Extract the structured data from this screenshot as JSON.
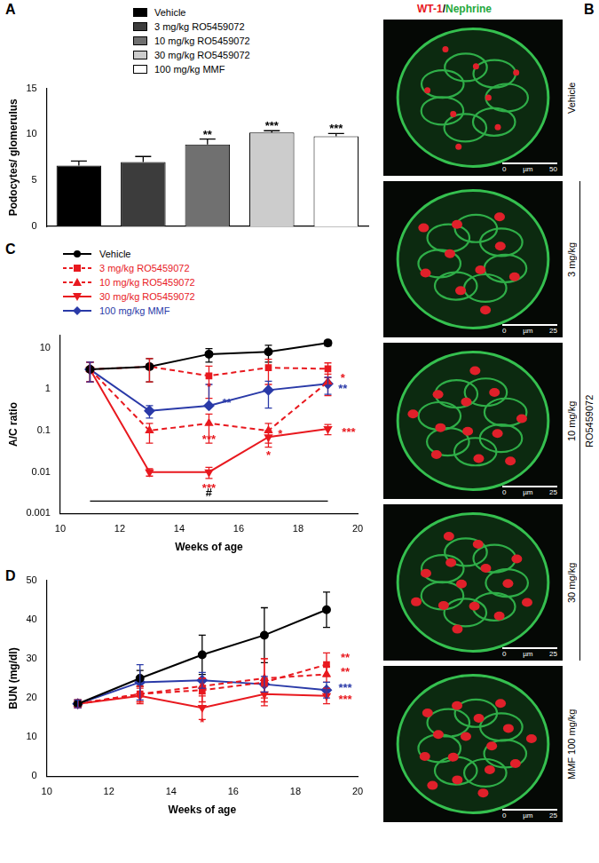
{
  "chart_data": [
    {
      "panel": "A",
      "type": "bar",
      "y_label": "Podocytes/ glomerulus",
      "categories": [
        "Vehicle",
        "3 mg/kg RO5459072",
        "10 mg/kg RO5459072",
        "30 mg/kg RO5459072",
        "100 mg/kg MMF"
      ],
      "values": [
        6.6,
        7.0,
        8.9,
        10.2,
        9.8
      ],
      "error": [
        0.5,
        0.6,
        0.6,
        0.2,
        0.3
      ],
      "colors": [
        "#000000",
        "#3c3c3c",
        "#707070",
        "#cccccc",
        "#ffffff"
      ],
      "ylim": [
        0,
        15
      ],
      "yticks": [
        0,
        5,
        10,
        15
      ],
      "tick_labels": "y",
      "legend": "top",
      "grid": false,
      "annotations": [
        {
          "x": "10 mg/kg RO5459072",
          "y": 9.9,
          "text": "**",
          "color": "#000000"
        },
        {
          "x": "30 mg/kg RO5459072",
          "y": 10.9,
          "text": "***",
          "color": "#000000"
        },
        {
          "x": "100 mg/kg MMF",
          "y": 10.6,
          "text": "***",
          "color": "#000000"
        }
      ]
    },
    {
      "panel": "C",
      "type": "line",
      "x_label": "Weeks of age",
      "y_label": "A/C ratio",
      "log": "y",
      "grid": false,
      "legend": "top",
      "xlim": [
        10,
        20
      ],
      "xticks": [
        10,
        12,
        14,
        16,
        18,
        20
      ],
      "ylim": [
        0.001,
        20
      ],
      "yticks": [
        0.001,
        0.01,
        0.1,
        1,
        10
      ],
      "x": [
        11,
        13,
        15,
        17,
        19
      ],
      "series": [
        {
          "name": "Vehicle",
          "color": "#000000",
          "marker": "circle",
          "line_style": "solid",
          "values": [
            3,
            3.5,
            7,
            8,
            13
          ],
          "error": [
            1.5,
            2,
            2.5,
            3.5,
            2
          ]
        },
        {
          "name": "3 mg/kg RO5459072",
          "color": "#e8191f",
          "marker": "square",
          "line_style": "dashed",
          "values": [
            3,
            3.5,
            2.1,
            3.3,
            3.1
          ],
          "error": [
            1.5,
            2,
            1.5,
            2,
            1.2
          ]
        },
        {
          "name": "10 mg/kg RO5459072",
          "color": "#e8191f",
          "marker": "triangle",
          "line_style": "dashed",
          "values": [
            3,
            0.1,
            0.15,
            0.1,
            1.5
          ],
          "error": [
            1.5,
            0.05,
            0.1,
            0.05,
            0.8
          ]
        },
        {
          "name": "30 mg/kg RO5459072",
          "color": "#e8191f",
          "marker": "triangle-down",
          "line_style": "solid",
          "values": [
            3,
            0.01,
            0.01,
            0.07,
            0.11
          ],
          "error": [
            1.5,
            0.002,
            0.003,
            0.03,
            0.03
          ]
        },
        {
          "name": "100 mg/kg MMF",
          "color": "#2a3aa8",
          "marker": "diamond",
          "line_style": "solid",
          "values": [
            3,
            0.3,
            0.4,
            0.95,
            1.35
          ],
          "error": [
            1.5,
            0.1,
            0.9,
            0.6,
            0.6
          ]
        }
      ],
      "annotations": [
        {
          "x": 15,
          "y": 1.1,
          "text": "*",
          "color": "#e8191f"
        },
        {
          "x": 15.6,
          "y": 0.45,
          "text": "**",
          "color": "#2a3aa8"
        },
        {
          "x": 15,
          "y": 0.06,
          "text": "***",
          "color": "#e8191f"
        },
        {
          "x": 15,
          "y": 0.004,
          "text": "***",
          "color": "#e8191f"
        },
        {
          "x": 17.4,
          "y": 0.08,
          "text": "*",
          "color": "#e8191f"
        },
        {
          "x": 17,
          "y": 0.025,
          "text": "*",
          "color": "#e8191f"
        },
        {
          "x": 19.5,
          "y": 1.8,
          "text": "*",
          "color": "#e8191f"
        },
        {
          "x": 19.5,
          "y": 1.0,
          "text": "**",
          "color": "#2a3aa8"
        },
        {
          "x": 19.7,
          "y": 0.09,
          "text": "***",
          "color": "#e8191f"
        },
        {
          "x": 11,
          "x2": 19,
          "y": 0.002,
          "text": "#",
          "color": "#000000"
        }
      ]
    },
    {
      "panel": "D",
      "type": "line",
      "x_label": "Weeks of age",
      "y_label": "BUN (mg/dl)",
      "grid": false,
      "xlim": [
        10,
        20
      ],
      "xticks": [
        10,
        12,
        14,
        16,
        18,
        20
      ],
      "ylim": [
        0,
        50
      ],
      "yticks": [
        0,
        10,
        20,
        30,
        40,
        50
      ],
      "x": [
        11,
        13,
        15,
        17,
        19
      ],
      "series": [
        {
          "color": "#000000",
          "marker": "circle",
          "line_style": "solid",
          "values": [
            18.5,
            25,
            31,
            36,
            42.5
          ],
          "error": [
            1,
            2,
            5,
            7,
            4.5
          ]
        },
        {
          "color": "#e8191f",
          "marker": "square",
          "line_style": "dashed",
          "values": [
            18.5,
            21,
            22,
            24,
            28.5
          ],
          "error": [
            1,
            2,
            3,
            6,
            3
          ]
        },
        {
          "color": "#e8191f",
          "marker": "triangle",
          "line_style": "dashed",
          "values": [
            18.5,
            21,
            23,
            25,
            26
          ],
          "error": [
            1,
            2,
            2,
            5,
            2
          ]
        },
        {
          "color": "#e8191f",
          "marker": "triangle-down",
          "line_style": "solid",
          "values": [
            18.5,
            20.5,
            17.5,
            21,
            20.5
          ],
          "error": [
            1,
            2,
            3,
            2,
            2
          ]
        },
        {
          "color": "#2a3aa8",
          "marker": "diamond",
          "line_style": "solid",
          "values": [
            18.5,
            24,
            24.5,
            23.5,
            22
          ],
          "error": [
            1,
            4.5,
            2,
            2,
            2
          ]
        }
      ],
      "annotations": [
        {
          "x": 19.6,
          "y": 30,
          "text": "**",
          "color": "#e8191f"
        },
        {
          "x": 19.6,
          "y": 26.5,
          "text": "**",
          "color": "#e8191f"
        },
        {
          "x": 19.6,
          "y": 22.5,
          "text": "***",
          "color": "#2a3aa8"
        },
        {
          "x": 19.6,
          "y": 19.5,
          "text": "***",
          "color": "#e8191f"
        },
        {
          "x": 15,
          "y": 13.5,
          "text": "*",
          "color": "#e8191f"
        }
      ]
    }
  ],
  "panel_B": {
    "panel": "B",
    "stain": [
      {
        "text": "WT-1",
        "color": "#e8191f"
      },
      {
        "text": "/",
        "color": "#000000"
      },
      {
        "text": "Nephrine",
        "color": "#1fa83c"
      }
    ],
    "group_label": "RO5459072",
    "images": [
      {
        "label": "Vehicle",
        "scale_bar": {
          "start": 0,
          "unit": "µm",
          "end": 50
        }
      },
      {
        "label": "3 mg/kg",
        "group": true,
        "scale_bar": {
          "start": 0,
          "unit": "µm",
          "end": 25
        }
      },
      {
        "label": "10 mg/kg",
        "group": true,
        "scale_bar": {
          "start": 0,
          "unit": "µm",
          "end": 25
        }
      },
      {
        "label": "30 mg/kg",
        "group": true,
        "scale_bar": {
          "start": 0,
          "unit": "µm",
          "end": 25
        }
      },
      {
        "label": "MMF 100 mg/kg",
        "scale_bar": {
          "start": 0,
          "unit": "µm",
          "end": 25
        }
      }
    ]
  }
}
